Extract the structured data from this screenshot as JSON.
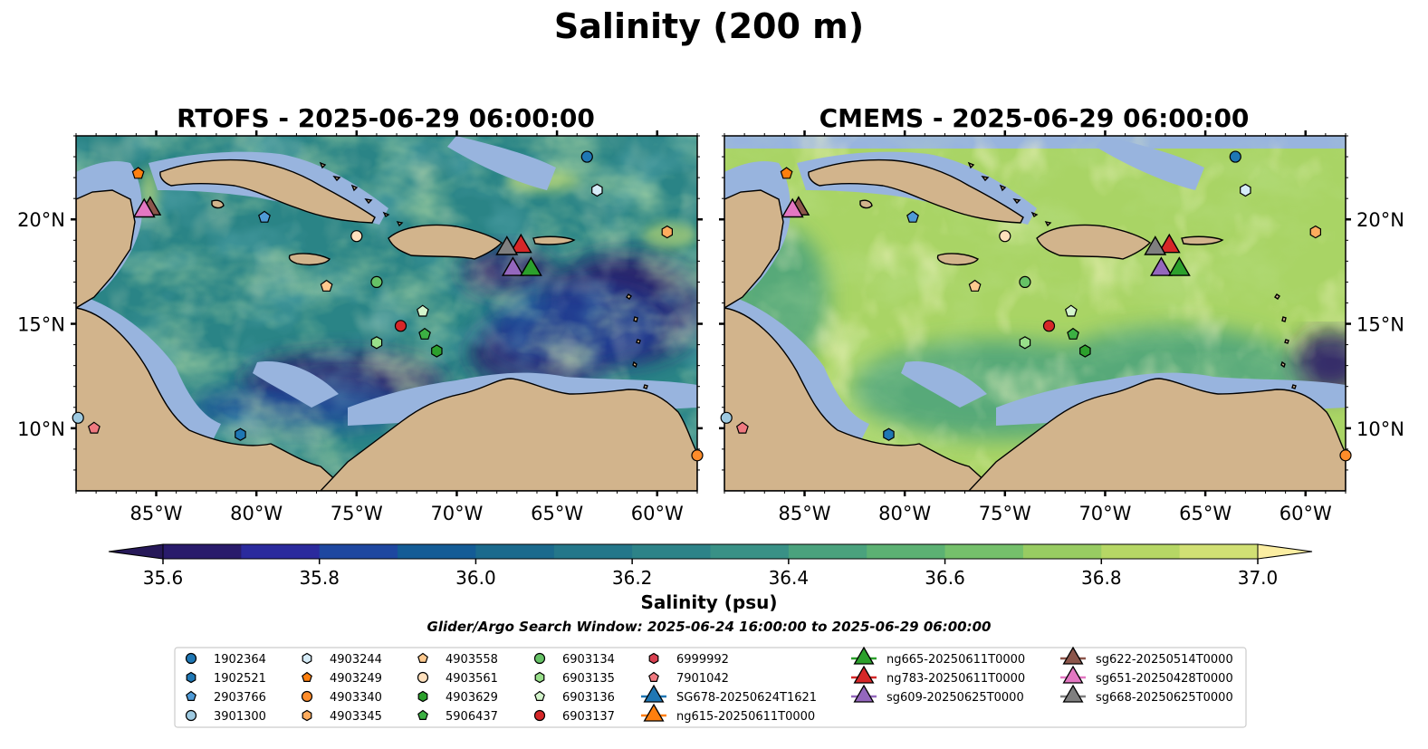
{
  "figure": {
    "suptitle": "Salinity (200 m)",
    "search_window": "Glider/Argo Search Window: 2025-06-24 16:00:00 to 2025-06-29 06:00:00"
  },
  "panels": [
    {
      "title": "RTOFS - 2025-06-29 06:00:00",
      "model": "RTOFS"
    },
    {
      "title": "CMEMS - 2025-06-29 06:00:00",
      "model": "CMEMS"
    }
  ],
  "map": {
    "lon_range": [
      -89,
      -58
    ],
    "lat_range": [
      7,
      24
    ],
    "lon_ticks": [
      "85°W",
      "80°W",
      "75°W",
      "70°W",
      "65°W",
      "60°W"
    ],
    "lon_tick_values": [
      -85,
      -80,
      -75,
      -70,
      -65,
      -60
    ],
    "lat_ticks": [
      "20°N",
      "15°N",
      "10°N"
    ],
    "lat_tick_values": [
      20,
      15,
      10
    ],
    "land_color": "#d2b48c",
    "shelf_color": "#98b4de"
  },
  "colorbar": {
    "label": "Salinity (psu)",
    "ticks": [
      "35.6",
      "35.8",
      "36.0",
      "36.2",
      "36.4",
      "36.6",
      "36.8",
      "37.0"
    ],
    "tick_values": [
      35.6,
      35.8,
      36.0,
      36.2,
      36.4,
      36.6,
      36.8,
      37.0
    ],
    "levels": [
      35.6,
      35.7,
      35.8,
      35.9,
      36.0,
      36.1,
      36.2,
      36.3,
      36.4,
      36.5,
      36.6,
      36.7,
      36.8,
      36.9,
      37.0
    ],
    "colors": [
      "#291b6b",
      "#2b2a9d",
      "#1e47a0",
      "#145c96",
      "#1b6a8d",
      "#24778a",
      "#2d8388",
      "#399186",
      "#4aa27d",
      "#5cb173",
      "#75c06b",
      "#98cc62",
      "#b6d765",
      "#d1e074"
    ],
    "under_color": "#261858",
    "over_color": "#fbeea2"
  },
  "legend": {
    "columns": [
      [
        {
          "label": "1902364",
          "marker": "circle",
          "color": "#1f77b4"
        },
        {
          "label": "1902521",
          "marker": "hexagon",
          "color": "#1f77b4"
        },
        {
          "label": "2903766",
          "marker": "pentagon",
          "color": "#4f9ad6"
        },
        {
          "label": "3901300",
          "marker": "circle",
          "color": "#9ecae1"
        }
      ],
      [
        {
          "label": "4903244",
          "marker": "hexagon",
          "color": "#d6ecf8"
        },
        {
          "label": "4903249",
          "marker": "pentagon",
          "color": "#ff7f0e"
        },
        {
          "label": "4903340",
          "marker": "circle",
          "color": "#ff8c2a"
        },
        {
          "label": "4903345",
          "marker": "hexagon",
          "color": "#ffac5e"
        }
      ],
      [
        {
          "label": "4903558",
          "marker": "pentagon",
          "color": "#ffc98e"
        },
        {
          "label": "4903561",
          "marker": "circle",
          "color": "#ffe0bd"
        },
        {
          "label": "4903629",
          "marker": "hexagon",
          "color": "#2ca02c"
        },
        {
          "label": "5906437",
          "marker": "pentagon",
          "color": "#3cb043"
        }
      ],
      [
        {
          "label": "6903134",
          "marker": "circle",
          "color": "#66c266"
        },
        {
          "label": "6903135",
          "marker": "hexagon",
          "color": "#98df8a"
        },
        {
          "label": "6903136",
          "marker": "pentagon",
          "color": "#d4f5cc"
        },
        {
          "label": "6903137",
          "marker": "circle",
          "color": "#d62728"
        }
      ],
      [
        {
          "label": "6999992",
          "marker": "hexagon",
          "color": "#d84050"
        },
        {
          "label": "7901042",
          "marker": "pentagon",
          "color": "#f07a80"
        },
        {
          "label": "SG678-20250624T1621",
          "marker": "triangle",
          "color": "#1f77b4"
        },
        {
          "label": "ng615-20250611T0000",
          "marker": "triangle",
          "color": "#ff7f0e"
        }
      ],
      [
        {
          "label": "ng665-20250611T0000",
          "marker": "triangle",
          "color": "#2ca02c"
        },
        {
          "label": "ng783-20250611T0000",
          "marker": "triangle",
          "color": "#d62728"
        },
        {
          "label": "sg609-20250625T0000",
          "marker": "triangle",
          "color": "#9467bd"
        }
      ],
      [
        {
          "label": "sg622-20250514T0000",
          "marker": "triangle",
          "color": "#8c564b"
        },
        {
          "label": "sg651-20250428T0000",
          "marker": "triangle",
          "color": "#e377c2"
        },
        {
          "label": "sg668-20250625T0000",
          "marker": "triangle",
          "color": "#7f7f7f"
        }
      ]
    ]
  },
  "observations": [
    {
      "id": "1902364",
      "marker": "circle",
      "color": "#1f77b4",
      "lon": -63.5,
      "lat": 23.0
    },
    {
      "id": "4903244",
      "marker": "hexagon",
      "color": "#d6ecf8",
      "lon": -63.0,
      "lat": 21.4
    },
    {
      "id": "4903249",
      "marker": "pentagon",
      "color": "#ff7f0e",
      "lon": -85.9,
      "lat": 22.2
    },
    {
      "id": "2903766",
      "marker": "pentagon",
      "color": "#4f9ad6",
      "lon": -79.6,
      "lat": 20.1
    },
    {
      "id": "4903561",
      "marker": "circle",
      "color": "#ffe0bd",
      "lon": -75.0,
      "lat": 19.2
    },
    {
      "id": "4903345",
      "marker": "hexagon",
      "color": "#ffac5e",
      "lon": -59.5,
      "lat": 19.4
    },
    {
      "id": "4903558",
      "marker": "pentagon",
      "color": "#ffc98e",
      "lon": -76.5,
      "lat": 16.8
    },
    {
      "id": "6903134",
      "marker": "circle",
      "color": "#66c266",
      "lon": -74.0,
      "lat": 17.0
    },
    {
      "id": "6903136",
      "marker": "pentagon",
      "color": "#d4f5cc",
      "lon": -71.7,
      "lat": 15.6
    },
    {
      "id": "6903137",
      "marker": "circle",
      "color": "#d62728",
      "lon": -72.8,
      "lat": 14.9
    },
    {
      "id": "5906437",
      "marker": "pentagon",
      "color": "#3cb043",
      "lon": -71.6,
      "lat": 14.5
    },
    {
      "id": "6903135",
      "marker": "hexagon",
      "color": "#98df8a",
      "lon": -74.0,
      "lat": 14.1
    },
    {
      "id": "4903629",
      "marker": "hexagon",
      "color": "#2ca02c",
      "lon": -71.0,
      "lat": 13.7
    },
    {
      "id": "1902521",
      "marker": "hexagon",
      "color": "#1f77b4",
      "lon": -80.8,
      "lat": 9.7
    },
    {
      "id": "3901300",
      "marker": "circle",
      "color": "#9ecae1",
      "lon": -88.9,
      "lat": 10.5
    },
    {
      "id": "7901042",
      "marker": "pentagon",
      "color": "#f07a80",
      "lon": -88.1,
      "lat": 10.0
    },
    {
      "id": "4903340",
      "marker": "circle",
      "color": "#ff8c2a",
      "lon": -58.0,
      "lat": 8.7
    }
  ],
  "gliders": [
    {
      "id": "sg622-20250514T0000",
      "color": "#8c564b",
      "lon": -85.3,
      "lat": 20.5
    },
    {
      "id": "sg651-20250428T0000",
      "color": "#e377c2",
      "lon": -85.6,
      "lat": 20.4
    },
    {
      "id": "ng783-20250611T0000",
      "color": "#d62728",
      "lon": -66.8,
      "lat": 18.7
    },
    {
      "id": "sg668-20250625T0000",
      "color": "#7f7f7f",
      "lon": -67.5,
      "lat": 18.6
    },
    {
      "id": "sg609-20250625T0000",
      "color": "#9467bd",
      "lon": -67.2,
      "lat": 17.6
    },
    {
      "id": "ng665-20250611T0000",
      "color": "#2ca02c",
      "lon": -66.3,
      "lat": 17.6
    }
  ]
}
